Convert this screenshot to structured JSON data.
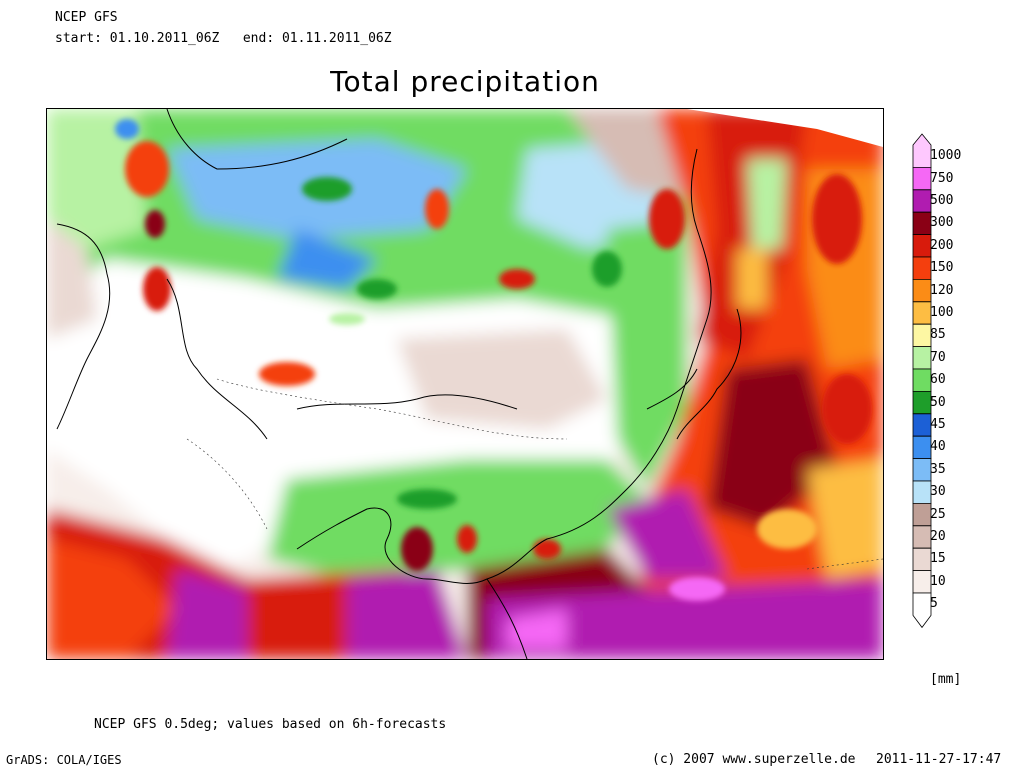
{
  "header": {
    "model": "NCEP GFS",
    "dates": "start: 01.10.2011_06Z   end: 01.11.2011_06Z"
  },
  "title": "Total precipitation",
  "colorbar": {
    "units": "[mm]",
    "levels": [
      {
        "label": "1000",
        "color": "#fec8fe"
      },
      {
        "label": "750",
        "color": "#f568f5"
      },
      {
        "label": "500",
        "color": "#b01cb0"
      },
      {
        "label": "300",
        "color": "#8a0015"
      },
      {
        "label": "200",
        "color": "#d81b0c"
      },
      {
        "label": "150",
        "color": "#f43f0e"
      },
      {
        "label": "120",
        "color": "#fb8c16"
      },
      {
        "label": "100",
        "color": "#fdbd43"
      },
      {
        "label": "85",
        "color": "#fdf7a3"
      },
      {
        "label": "70",
        "color": "#b7f2a3"
      },
      {
        "label": "60",
        "color": "#6fdc62"
      },
      {
        "label": "50",
        "color": "#1e9e2a"
      },
      {
        "label": "45",
        "color": "#1c60d6"
      },
      {
        "label": "40",
        "color": "#3c8ff0"
      },
      {
        "label": "35",
        "color": "#7cbcf6"
      },
      {
        "label": "30",
        "color": "#b8e2f8"
      },
      {
        "label": "25",
        "color": "#bf9f96"
      },
      {
        "label": "20",
        "color": "#d6bcb4"
      },
      {
        "label": "15",
        "color": "#ead9d3"
      },
      {
        "label": "10",
        "color": "#f7eeea"
      },
      {
        "label": "5",
        "color": "#ffffff"
      }
    ]
  },
  "footer": {
    "note": "NCEP GFS 0.5deg; values based on 6h-forecasts",
    "software": "GrADS: COLA/IGES",
    "copyright": "(c) 2007 www.superzelle.de",
    "timestamp": "2011-11-27-17:47"
  }
}
